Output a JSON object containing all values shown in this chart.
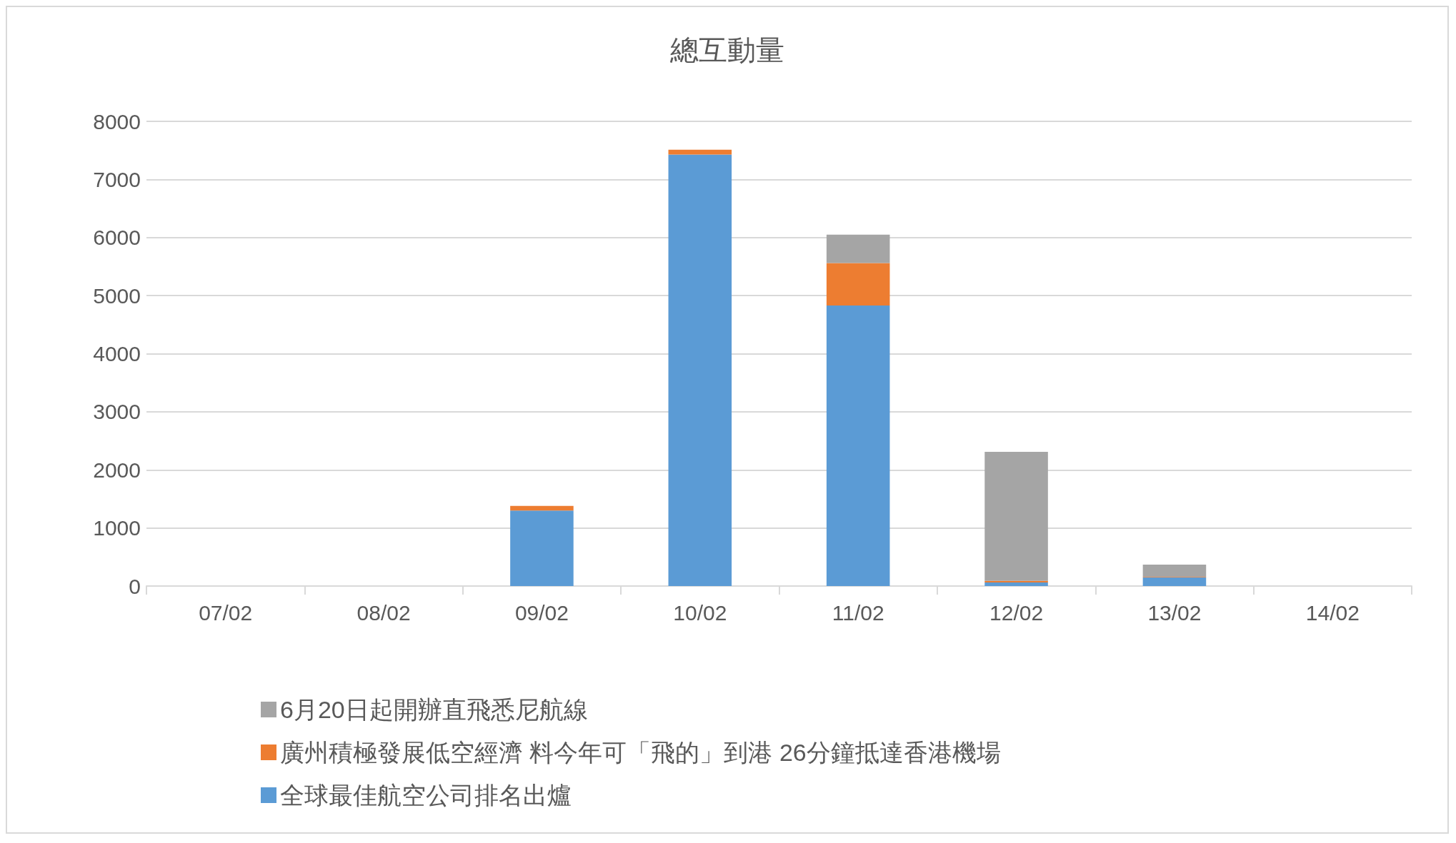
{
  "chart_data": {
    "type": "bar",
    "title": "總互動量",
    "stacked": true,
    "categories": [
      "07/02",
      "08/02",
      "09/02",
      "10/02",
      "11/02",
      "12/02",
      "13/02",
      "14/02"
    ],
    "series": [
      {
        "name": "全球最佳航空公司排名出爐",
        "color": "#5b9bd5",
        "values": [
          0,
          0,
          1300,
          7430,
          4830,
          60,
          150,
          0
        ]
      },
      {
        "name": "廣州積極發展低空經濟 料今年可「飛的」到港 26分鐘抵達香港機場",
        "color": "#ed7d31",
        "values": [
          0,
          0,
          80,
          80,
          730,
          30,
          10,
          0
        ]
      },
      {
        "name": "6月20日起開辦直飛悉尼航線",
        "color": "#a5a5a5",
        "values": [
          0,
          0,
          0,
          0,
          490,
          2220,
          210,
          0
        ]
      }
    ],
    "ylim": [
      0,
      8000
    ],
    "yticks": [
      0,
      1000,
      2000,
      3000,
      4000,
      5000,
      6000,
      7000,
      8000
    ],
    "grid": "y",
    "legend": "bottom"
  }
}
